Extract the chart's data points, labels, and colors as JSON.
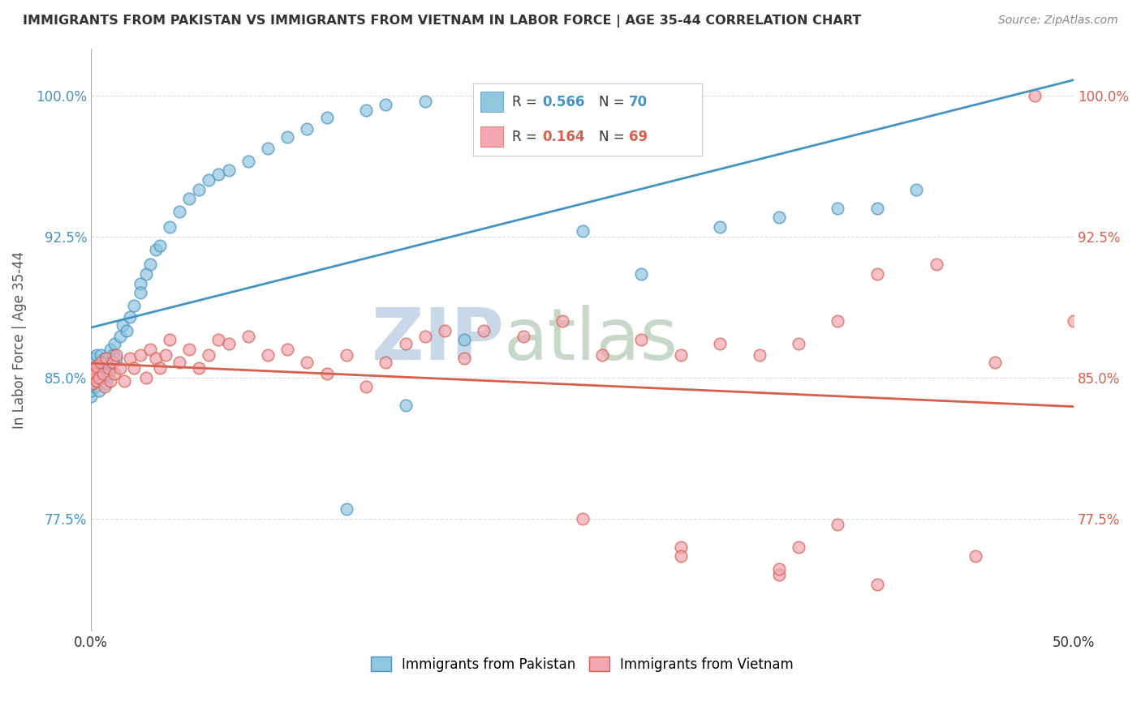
{
  "title": "IMMIGRANTS FROM PAKISTAN VS IMMIGRANTS FROM VIETNAM IN LABOR FORCE | AGE 35-44 CORRELATION CHART",
  "source": "Source: ZipAtlas.com",
  "ylabel": "In Labor Force | Age 35-44",
  "xlim": [
    0.0,
    0.5
  ],
  "ylim": [
    0.715,
    1.025
  ],
  "yticks": [
    0.775,
    0.85,
    0.925,
    1.0
  ],
  "ytick_labels_left": [
    "77.5%",
    "85.0%",
    "92.5%",
    "100.0%"
  ],
  "ytick_labels_right": [
    "77.5%",
    "85.0%",
    "92.5%",
    "100.0%"
  ],
  "xticks": [
    0.0,
    0.5
  ],
  "xtick_labels": [
    "0.0%",
    "50.0%"
  ],
  "pakistan_R": 0.566,
  "pakistan_N": 70,
  "vietnam_R": 0.164,
  "vietnam_N": 69,
  "pakistan_color": "#92c5de",
  "vietnam_color": "#f4a6b2",
  "pakistan_line_color": "#4393c3",
  "vietnam_line_color": "#d6604d",
  "pakistan_edge_color": "#4393c3",
  "vietnam_edge_color": "#d6604d",
  "left_tick_color": "#4393c3",
  "right_tick_color": "#d6604d",
  "background_color": "#ffffff",
  "grid_color": "#dddddd",
  "title_color": "#333333",
  "watermark_zip_color": "#c8d8e8",
  "watermark_atlas_color": "#c8d8c8",
  "legend_border_color": "#cccccc",
  "legend_R_color": "#4393c3",
  "legend_N_color": "#4393c3",
  "legend_R2_color": "#d6604d",
  "legend_N2_color": "#d6604d",
  "pak_scatter_x": [
    0.0,
    0.0,
    0.0,
    0.0,
    0.0,
    0.0,
    0.0,
    0.0,
    0.001,
    0.001,
    0.002,
    0.002,
    0.003,
    0.003,
    0.003,
    0.004,
    0.004,
    0.005,
    0.005,
    0.006,
    0.006,
    0.007,
    0.007,
    0.008,
    0.008,
    0.009,
    0.009,
    0.01,
    0.01,
    0.011,
    0.012,
    0.013,
    0.015,
    0.016,
    0.018,
    0.02,
    0.022,
    0.025,
    0.025,
    0.028,
    0.03,
    0.033,
    0.035,
    0.04,
    0.045,
    0.05,
    0.055,
    0.06,
    0.065,
    0.07,
    0.08,
    0.09,
    0.1,
    0.11,
    0.12,
    0.14,
    0.15,
    0.17,
    0.2,
    0.22,
    0.25,
    0.28,
    0.32,
    0.35,
    0.38,
    0.4,
    0.42,
    0.13,
    0.16,
    0.19
  ],
  "pak_scatter_y": [
    0.848,
    0.852,
    0.856,
    0.845,
    0.84,
    0.857,
    0.843,
    0.85,
    0.848,
    0.86,
    0.853,
    0.845,
    0.855,
    0.85,
    0.862,
    0.856,
    0.843,
    0.855,
    0.862,
    0.85,
    0.858,
    0.852,
    0.86,
    0.855,
    0.847,
    0.86,
    0.852,
    0.858,
    0.865,
    0.862,
    0.868,
    0.86,
    0.872,
    0.878,
    0.875,
    0.882,
    0.888,
    0.9,
    0.895,
    0.905,
    0.91,
    0.918,
    0.92,
    0.93,
    0.938,
    0.945,
    0.95,
    0.955,
    0.958,
    0.96,
    0.965,
    0.972,
    0.978,
    0.982,
    0.988,
    0.992,
    0.995,
    0.997,
    1.0,
    1.0,
    0.928,
    0.905,
    0.93,
    0.935,
    0.94,
    0.94,
    0.95,
    0.78,
    0.835,
    0.87
  ],
  "viet_scatter_x": [
    0.0,
    0.0,
    0.001,
    0.002,
    0.003,
    0.003,
    0.004,
    0.005,
    0.006,
    0.007,
    0.008,
    0.009,
    0.01,
    0.011,
    0.012,
    0.013,
    0.015,
    0.017,
    0.02,
    0.022,
    0.025,
    0.028,
    0.03,
    0.033,
    0.035,
    0.038,
    0.04,
    0.045,
    0.05,
    0.055,
    0.06,
    0.065,
    0.07,
    0.08,
    0.09,
    0.1,
    0.11,
    0.12,
    0.13,
    0.14,
    0.15,
    0.16,
    0.17,
    0.18,
    0.19,
    0.2,
    0.22,
    0.24,
    0.26,
    0.28,
    0.3,
    0.32,
    0.34,
    0.36,
    0.38,
    0.4,
    0.43,
    0.46,
    0.48,
    0.5,
    0.25,
    0.3,
    0.35,
    0.4,
    0.45,
    0.36,
    0.38,
    0.3,
    0.35
  ],
  "viet_scatter_y": [
    0.85,
    0.855,
    0.847,
    0.852,
    0.848,
    0.856,
    0.85,
    0.858,
    0.852,
    0.845,
    0.86,
    0.855,
    0.848,
    0.858,
    0.852,
    0.862,
    0.855,
    0.848,
    0.86,
    0.855,
    0.862,
    0.85,
    0.865,
    0.86,
    0.855,
    0.862,
    0.87,
    0.858,
    0.865,
    0.855,
    0.862,
    0.87,
    0.868,
    0.872,
    0.862,
    0.865,
    0.858,
    0.852,
    0.862,
    0.845,
    0.858,
    0.868,
    0.872,
    0.875,
    0.86,
    0.875,
    0.872,
    0.88,
    0.862,
    0.87,
    0.862,
    0.868,
    0.862,
    0.868,
    0.88,
    0.905,
    0.91,
    0.858,
    1.0,
    0.88,
    0.775,
    0.76,
    0.745,
    0.74,
    0.755,
    0.76,
    0.772,
    0.755,
    0.748
  ]
}
